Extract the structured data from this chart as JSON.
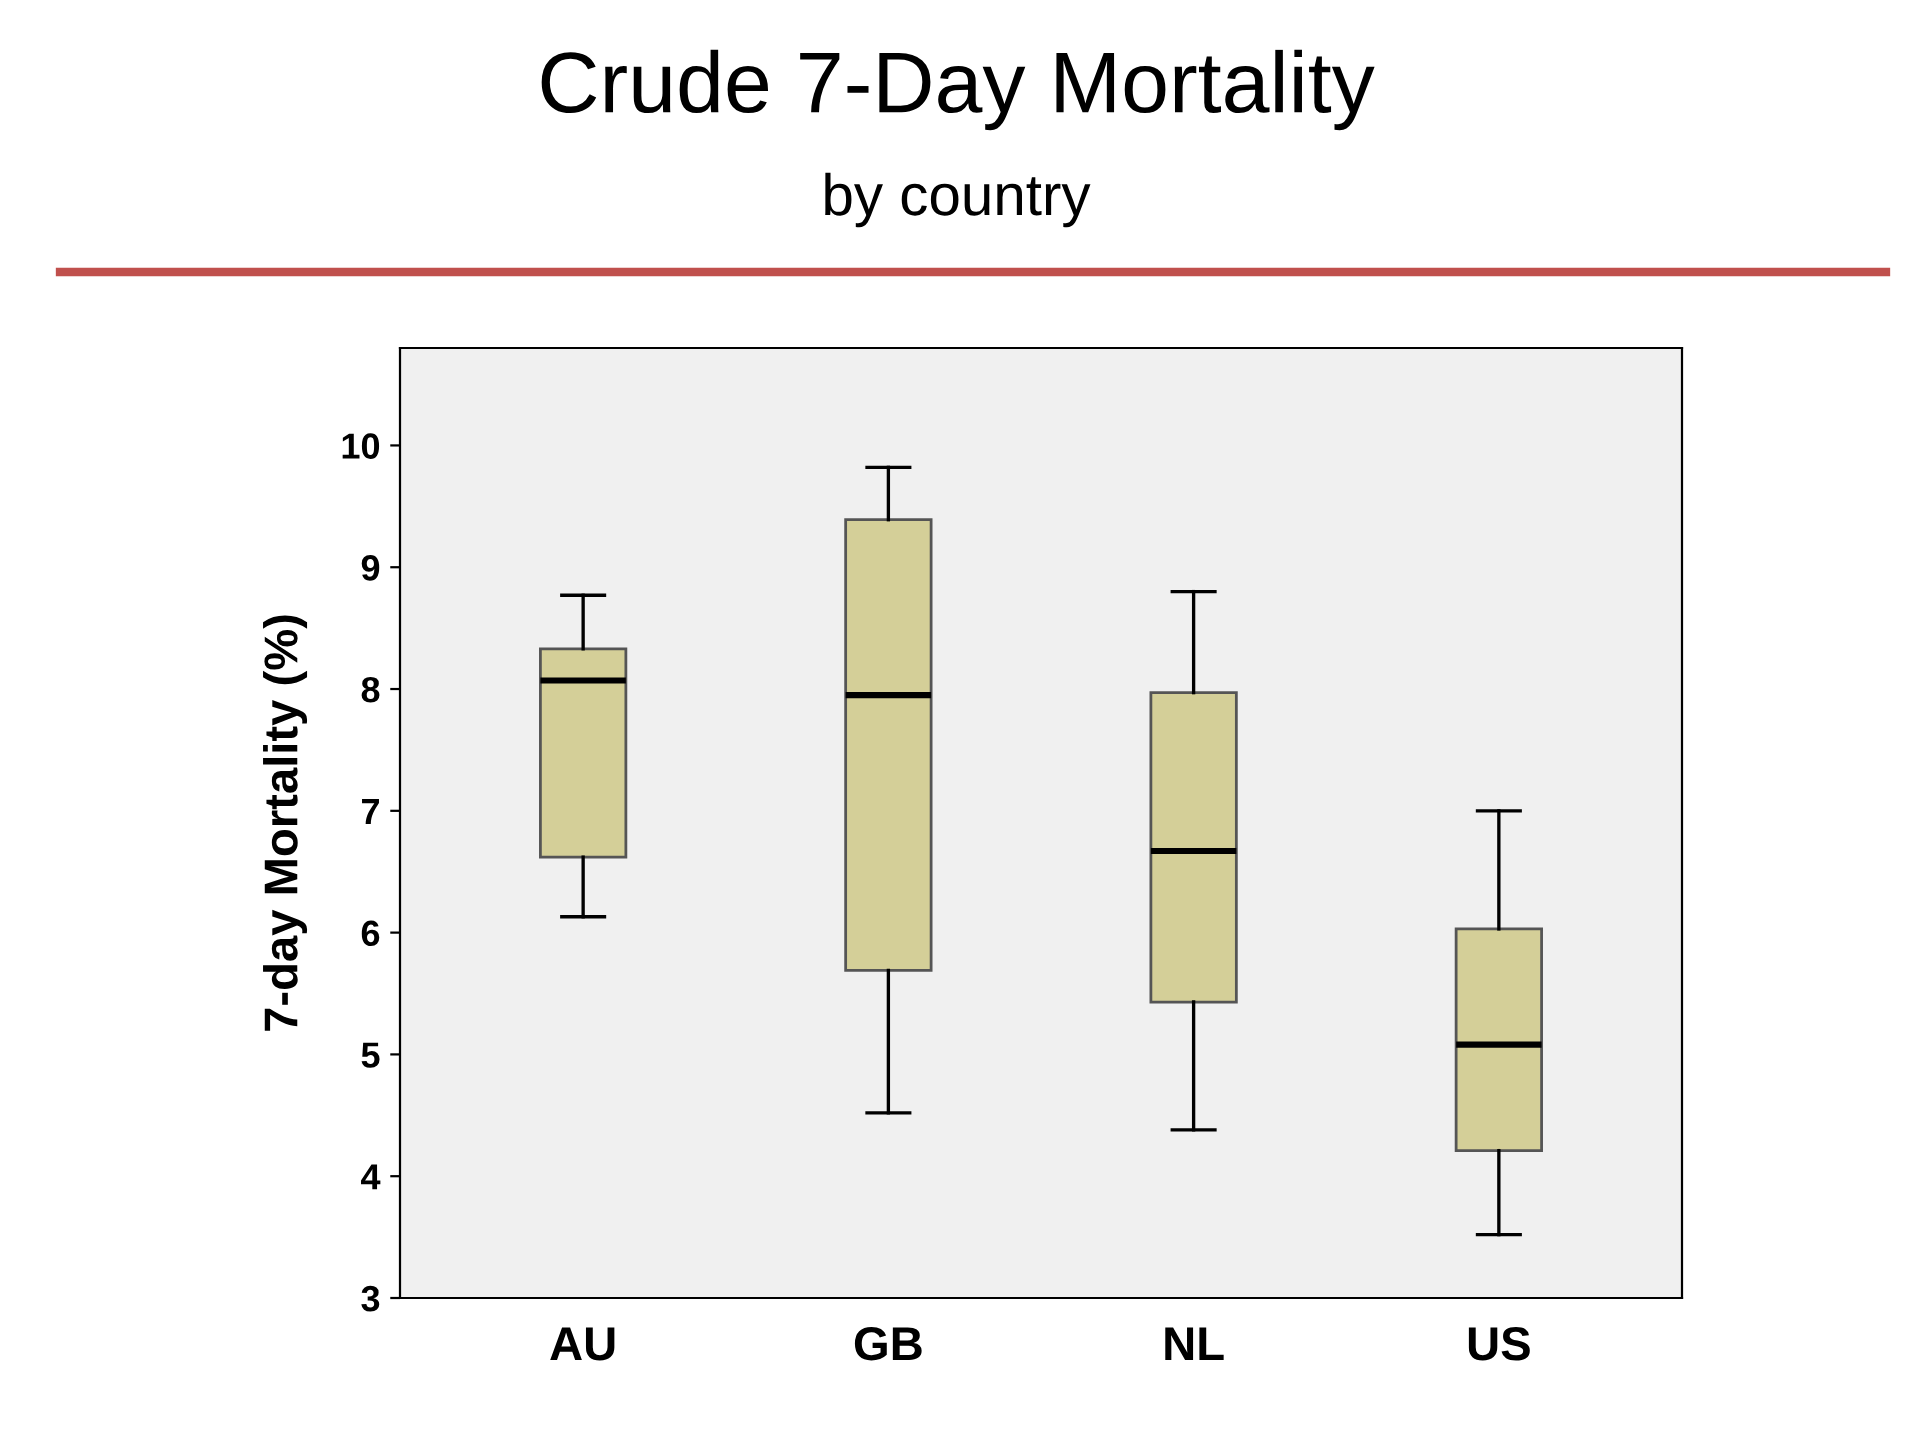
{
  "chart_data": {
    "type": "box",
    "title": "Crude 7-Day Mortality",
    "subtitle": "by country",
    "ylabel": "7-day Mortality (%)",
    "categories": [
      "AU",
      "GB",
      "NL",
      "US"
    ],
    "boxes": [
      {
        "low": 6.13,
        "q1": 6.62,
        "median": 8.07,
        "q3": 8.33,
        "high": 8.77
      },
      {
        "low": 4.52,
        "q1": 5.69,
        "median": 7.95,
        "q3": 9.39,
        "high": 9.82
      },
      {
        "low": 4.38,
        "q1": 5.43,
        "median": 6.67,
        "q3": 7.97,
        "high": 8.8
      },
      {
        "low": 3.52,
        "q1": 4.21,
        "median": 5.08,
        "q3": 6.03,
        "high": 7.0
      }
    ],
    "color": "#d4cf98",
    "ylim": [
      3,
      10.8
    ],
    "yticks": [
      3,
      4,
      5,
      6,
      7,
      8,
      9,
      10
    ],
    "grid": false
  }
}
